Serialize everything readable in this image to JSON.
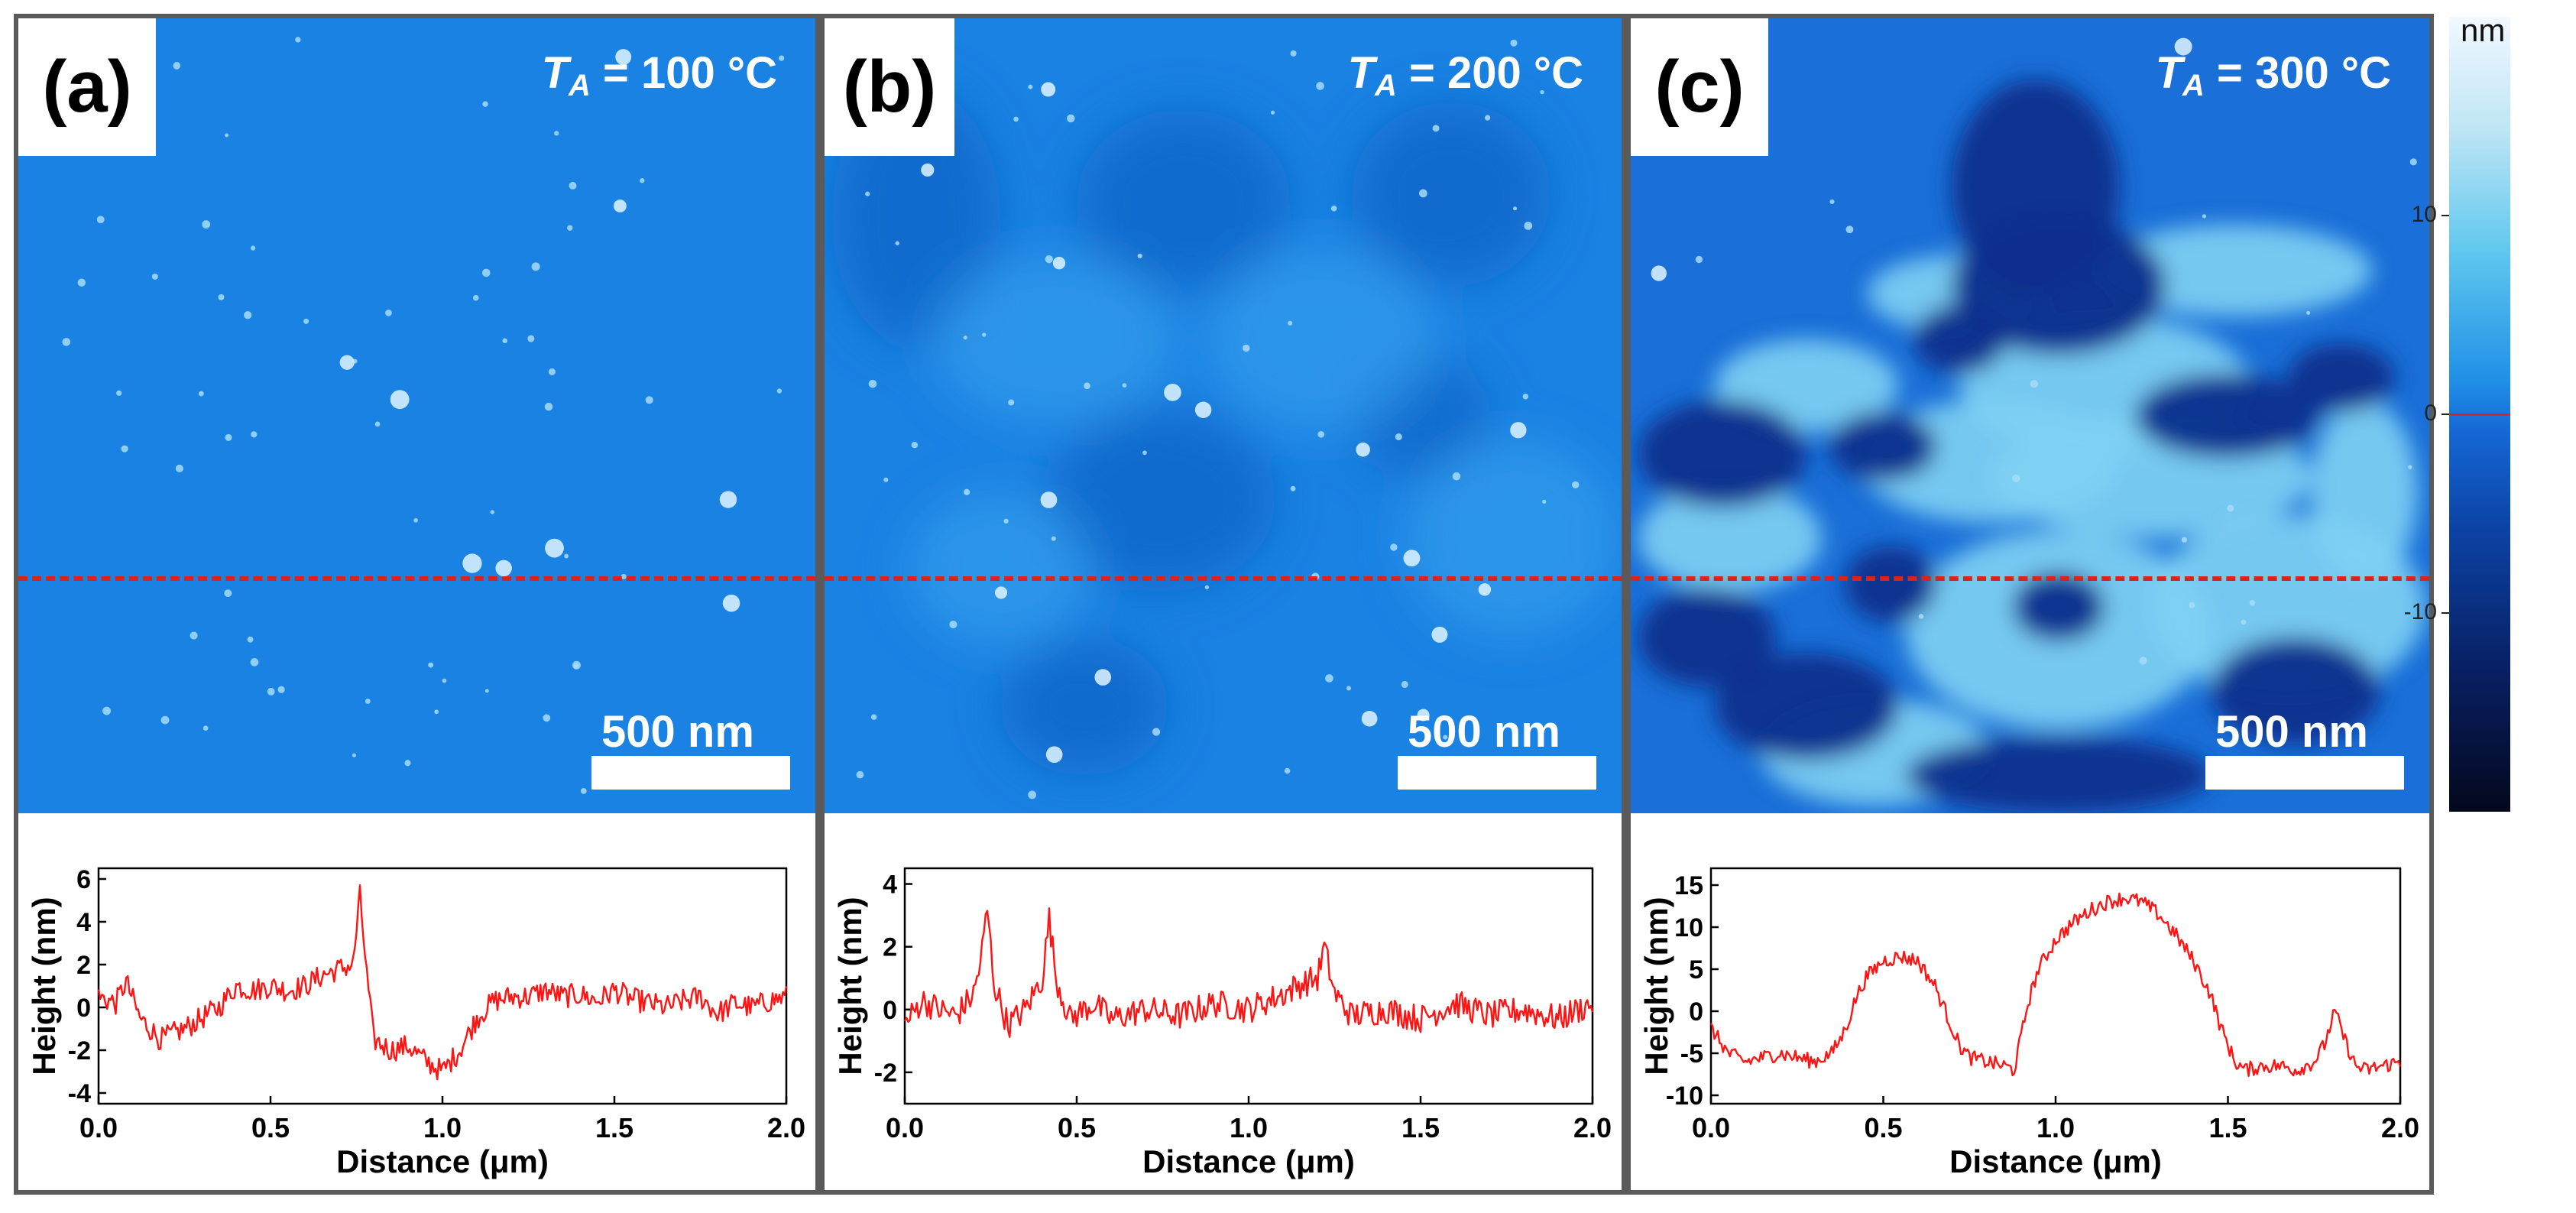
{
  "panels": [
    {
      "letter": "(a)",
      "temperature": {
        "symbol": "T",
        "subscript": "A",
        "value": " = 100 °C"
      },
      "scale_bar": "500 nm",
      "profile": {
        "ylabel": "Height (nm)",
        "xlabel": "Distance (μm)",
        "yticks": [
          "6",
          "4",
          "2",
          "0",
          "-2",
          "-4"
        ],
        "xticks": [
          "0.0",
          "0.5",
          "1.0",
          "1.5",
          "2.0"
        ],
        "ylim": [
          -4.5,
          6.5
        ]
      }
    },
    {
      "letter": "(b)",
      "temperature": {
        "symbol": "T",
        "subscript": "A",
        "value": " = 200 °C"
      },
      "scale_bar": "500 nm",
      "profile": {
        "ylabel": "Height (nm)",
        "xlabel": "Distance (μm)",
        "yticks": [
          "4",
          "2",
          "0",
          "-2"
        ],
        "xticks": [
          "0.0",
          "0.5",
          "1.0",
          "1.5",
          "2.0"
        ],
        "ylim": [
          -3,
          4.5
        ]
      }
    },
    {
      "letter": "(c)",
      "temperature": {
        "symbol": "T",
        "subscript": "A",
        "value": " = 300 °C"
      },
      "scale_bar": "500 nm",
      "profile": {
        "ylabel": "Height (nm)",
        "xlabel": "Distance (μm)",
        "yticks": [
          "15",
          "10",
          "5",
          "0",
          "-5",
          "-10"
        ],
        "xticks": [
          "0.0",
          "0.5",
          "1.0",
          "1.5",
          "2.0"
        ],
        "ylim": [
          -11,
          17
        ]
      }
    }
  ],
  "colorbar": {
    "unit": "nm",
    "ticks": [
      "10",
      "0",
      "-10"
    ],
    "range": [
      -20,
      20
    ],
    "colors": {
      "top": "#f2f8ff",
      "mid": "#1568d6",
      "bottom": "#03081c",
      "zero_marker": "#d9231f"
    }
  },
  "chart_data": [
    {
      "type": "line",
      "panel": "(a)",
      "xlabel": "Distance (μm)",
      "ylabel": "Height (nm)",
      "xlim": [
        0,
        2
      ],
      "ylim": [
        -4.5,
        6.5
      ],
      "x": [
        0.0,
        0.05,
        0.08,
        0.12,
        0.18,
        0.25,
        0.3,
        0.35,
        0.4,
        0.45,
        0.5,
        0.55,
        0.6,
        0.65,
        0.7,
        0.74,
        0.76,
        0.78,
        0.8,
        0.85,
        0.9,
        0.95,
        1.0,
        1.05,
        1.1,
        1.15,
        1.2,
        1.25,
        1.3,
        1.35,
        1.4,
        1.45,
        1.5,
        1.55,
        1.6,
        1.65,
        1.7,
        1.75,
        1.8,
        1.85,
        1.9,
        1.95,
        2.0
      ],
      "values": [
        0.5,
        0.2,
        1.2,
        -0.5,
        -1.5,
        -1.0,
        -0.5,
        0.0,
        1.0,
        0.8,
        1.0,
        0.8,
        1.0,
        1.5,
        1.8,
        2.0,
        5.2,
        1.5,
        -1.5,
        -2.0,
        -1.8,
        -2.5,
        -3.0,
        -2.0,
        -0.5,
        0.3,
        0.5,
        0.5,
        0.8,
        0.5,
        0.6,
        0.3,
        0.8,
        0.4,
        0.2,
        0.0,
        0.3,
        0.5,
        -0.3,
        0.2,
        0.0,
        0.3,
        0.5
      ]
    },
    {
      "type": "line",
      "panel": "(b)",
      "xlabel": "Distance (μm)",
      "ylabel": "Height (nm)",
      "xlim": [
        0,
        2
      ],
      "ylim": [
        -3,
        4.5
      ],
      "x": [
        0.0,
        0.05,
        0.1,
        0.15,
        0.2,
        0.22,
        0.24,
        0.26,
        0.3,
        0.35,
        0.4,
        0.42,
        0.44,
        0.48,
        0.55,
        0.6,
        0.7,
        0.8,
        0.9,
        1.0,
        1.1,
        1.15,
        1.2,
        1.22,
        1.25,
        1.3,
        1.4,
        1.5,
        1.6,
        1.7,
        1.8,
        1.9,
        2.0
      ],
      "values": [
        -0.5,
        0.3,
        0.0,
        -0.2,
        0.5,
        1.5,
        3.2,
        0.8,
        -0.5,
        0.0,
        1.0,
        2.9,
        1.0,
        -0.3,
        0.2,
        -0.3,
        0.0,
        -0.2,
        0.2,
        0.0,
        0.5,
        0.8,
        1.0,
        2.0,
        0.5,
        -0.2,
        0.0,
        -0.3,
        0.2,
        -0.2,
        0.0,
        -0.3,
        0.2
      ]
    },
    {
      "type": "line",
      "panel": "(c)",
      "xlabel": "Distance (μm)",
      "ylabel": "Height (nm)",
      "xlim": [
        0,
        2
      ],
      "ylim": [
        -11,
        17
      ],
      "x": [
        0.0,
        0.05,
        0.1,
        0.15,
        0.2,
        0.25,
        0.3,
        0.35,
        0.38,
        0.4,
        0.42,
        0.45,
        0.5,
        0.55,
        0.6,
        0.65,
        0.68,
        0.72,
        0.75,
        0.8,
        0.85,
        0.88,
        0.9,
        0.92,
        0.95,
        1.0,
        1.05,
        1.1,
        1.15,
        1.2,
        1.25,
        1.3,
        1.35,
        1.4,
        1.45,
        1.48,
        1.52,
        1.55,
        1.6,
        1.65,
        1.7,
        1.75,
        1.78,
        1.81,
        1.84,
        1.87,
        1.9,
        1.95,
        2.0
      ],
      "values": [
        -2.0,
        -5.0,
        -6.0,
        -5.5,
        -5.0,
        -5.5,
        -6.0,
        -5.0,
        -3.0,
        -1.0,
        1.5,
        4.0,
        6.0,
        6.5,
        6.0,
        3.0,
        0.0,
        -4.0,
        -5.5,
        -6.0,
        -6.5,
        -7.0,
        -3.0,
        1.0,
        5.0,
        8.5,
        10.5,
        12.0,
        13.0,
        13.5,
        13.0,
        11.5,
        9.0,
        6.0,
        2.0,
        -2.0,
        -6.0,
        -7.0,
        -6.5,
        -6.5,
        -7.0,
        -6.0,
        -4.0,
        0.0,
        -3.5,
        -6.5,
        -7.0,
        -6.5,
        -6.0
      ]
    }
  ]
}
